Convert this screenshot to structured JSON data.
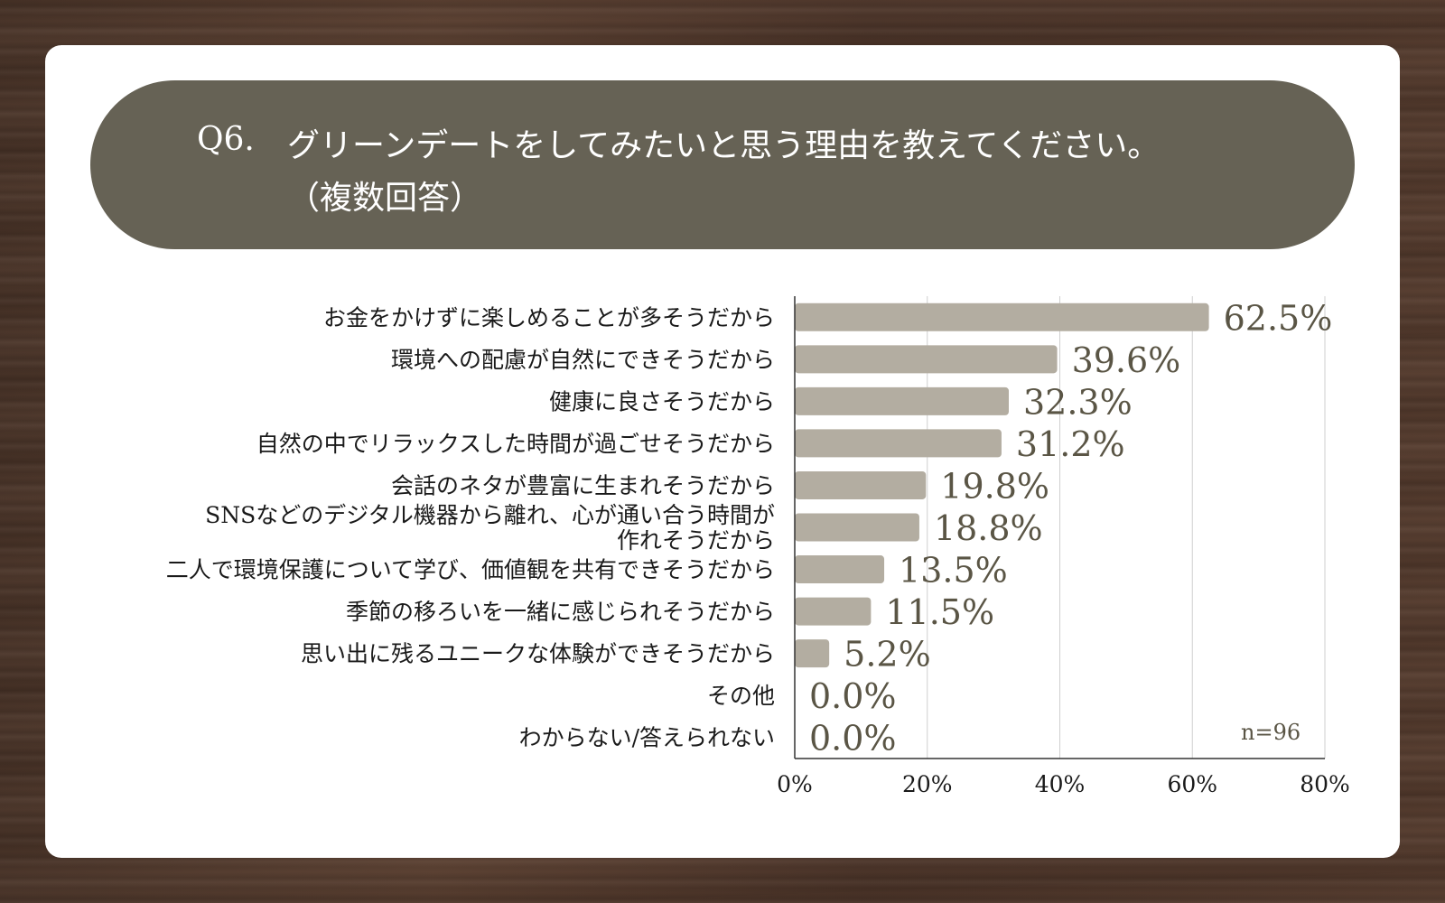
{
  "header": {
    "question_number": "Q6.",
    "question_text": "グリーンデートをしてみたいと思う理由を教えてください。\n（複数回答）"
  },
  "sample_size": "n=96",
  "colors": {
    "bar": "#b3ada1",
    "pill": "#666255",
    "value_text": "#5a5545",
    "grid": "#cfcfcf",
    "axis": "#333333"
  },
  "chart_data": {
    "type": "bar",
    "orientation": "horizontal",
    "categories": [
      "お金をかけずに楽しめることが多そうだから",
      "環境への配慮が自然にできそうだから",
      "健康に良さそうだから",
      "自然の中でリラックスした時間が過ごせそうだから",
      "会話のネタが豊富に生まれそうだから",
      "SNSなどのデジタル機器から離れ、心が通い合う時間が\n作れそうだから",
      "二人で環境保護について学び、価値観を共有できそうだから",
      "季節の移ろいを一緒に感じられそうだから",
      "思い出に残るユニークな体験ができそうだから",
      "その他",
      "わからない/答えられない"
    ],
    "values": [
      62.5,
      39.6,
      32.3,
      31.2,
      19.8,
      18.8,
      13.5,
      11.5,
      5.2,
      0.0,
      0.0
    ],
    "value_labels": [
      "62.5%",
      "39.6%",
      "32.3%",
      "31.2%",
      "19.8%",
      "18.8%",
      "13.5%",
      "11.5%",
      "5.2%",
      "0.0%",
      "0.0%"
    ],
    "xlim": [
      0,
      80
    ],
    "x_ticks": [
      0,
      20,
      40,
      60,
      80
    ],
    "x_tick_labels": [
      "0%",
      "20%",
      "40%",
      "60%",
      "80%"
    ],
    "grid": "vertical",
    "legend": "none"
  }
}
